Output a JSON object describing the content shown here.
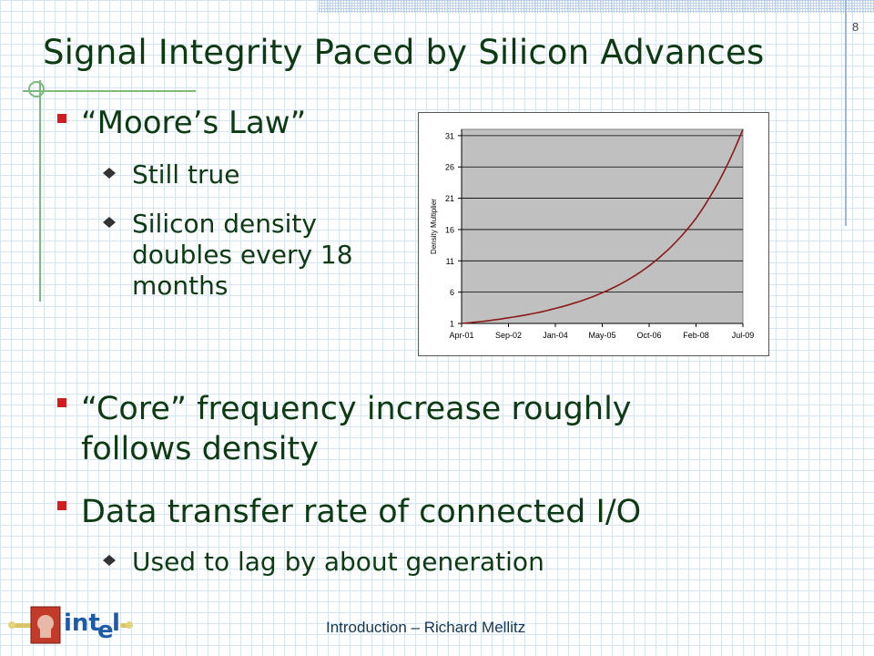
{
  "slide": {
    "number": "8",
    "title": "Signal Integrity Paced by Silicon Advances",
    "footer": "Introduction – Richard Mellitz",
    "logo_text": "intel"
  },
  "bullets": [
    {
      "text": "“Moore’s Law”",
      "sub": [
        "Still true",
        "Silicon density doubles every 18 months"
      ]
    },
    {
      "text": "“Core” frequency increase roughly follows density",
      "sub": []
    },
    {
      "text": "Data transfer rate of connected I/O",
      "sub": [
        "Used to lag by about generation"
      ]
    }
  ],
  "colors": {
    "text": "#0d3a12",
    "bullet": "#d11d1d",
    "plot_bg": "#c0c0c0",
    "series": "#8b1a1a",
    "accent": "#7db87d"
  },
  "chart_data": {
    "type": "line",
    "title": "",
    "xlabel": "",
    "ylabel": "Density Multiplier",
    "x_ticks": [
      "Apr-01",
      "Sep-02",
      "Jan-04",
      "May-05",
      "Oct-06",
      "Feb-08",
      "Jul-09"
    ],
    "y_ticks": [
      1,
      6,
      11,
      16,
      21,
      26,
      31
    ],
    "ylim": [
      1,
      32
    ],
    "grid": true,
    "legend": "none",
    "series": [
      {
        "x": [
          "Apr-01",
          "Sep-02",
          "Jan-04",
          "May-05",
          "Oct-06",
          "Feb-08",
          "Jul-09"
        ],
        "values": [
          1.0,
          1.9,
          3.4,
          5.9,
          10.2,
          17.8,
          32
        ]
      }
    ]
  }
}
